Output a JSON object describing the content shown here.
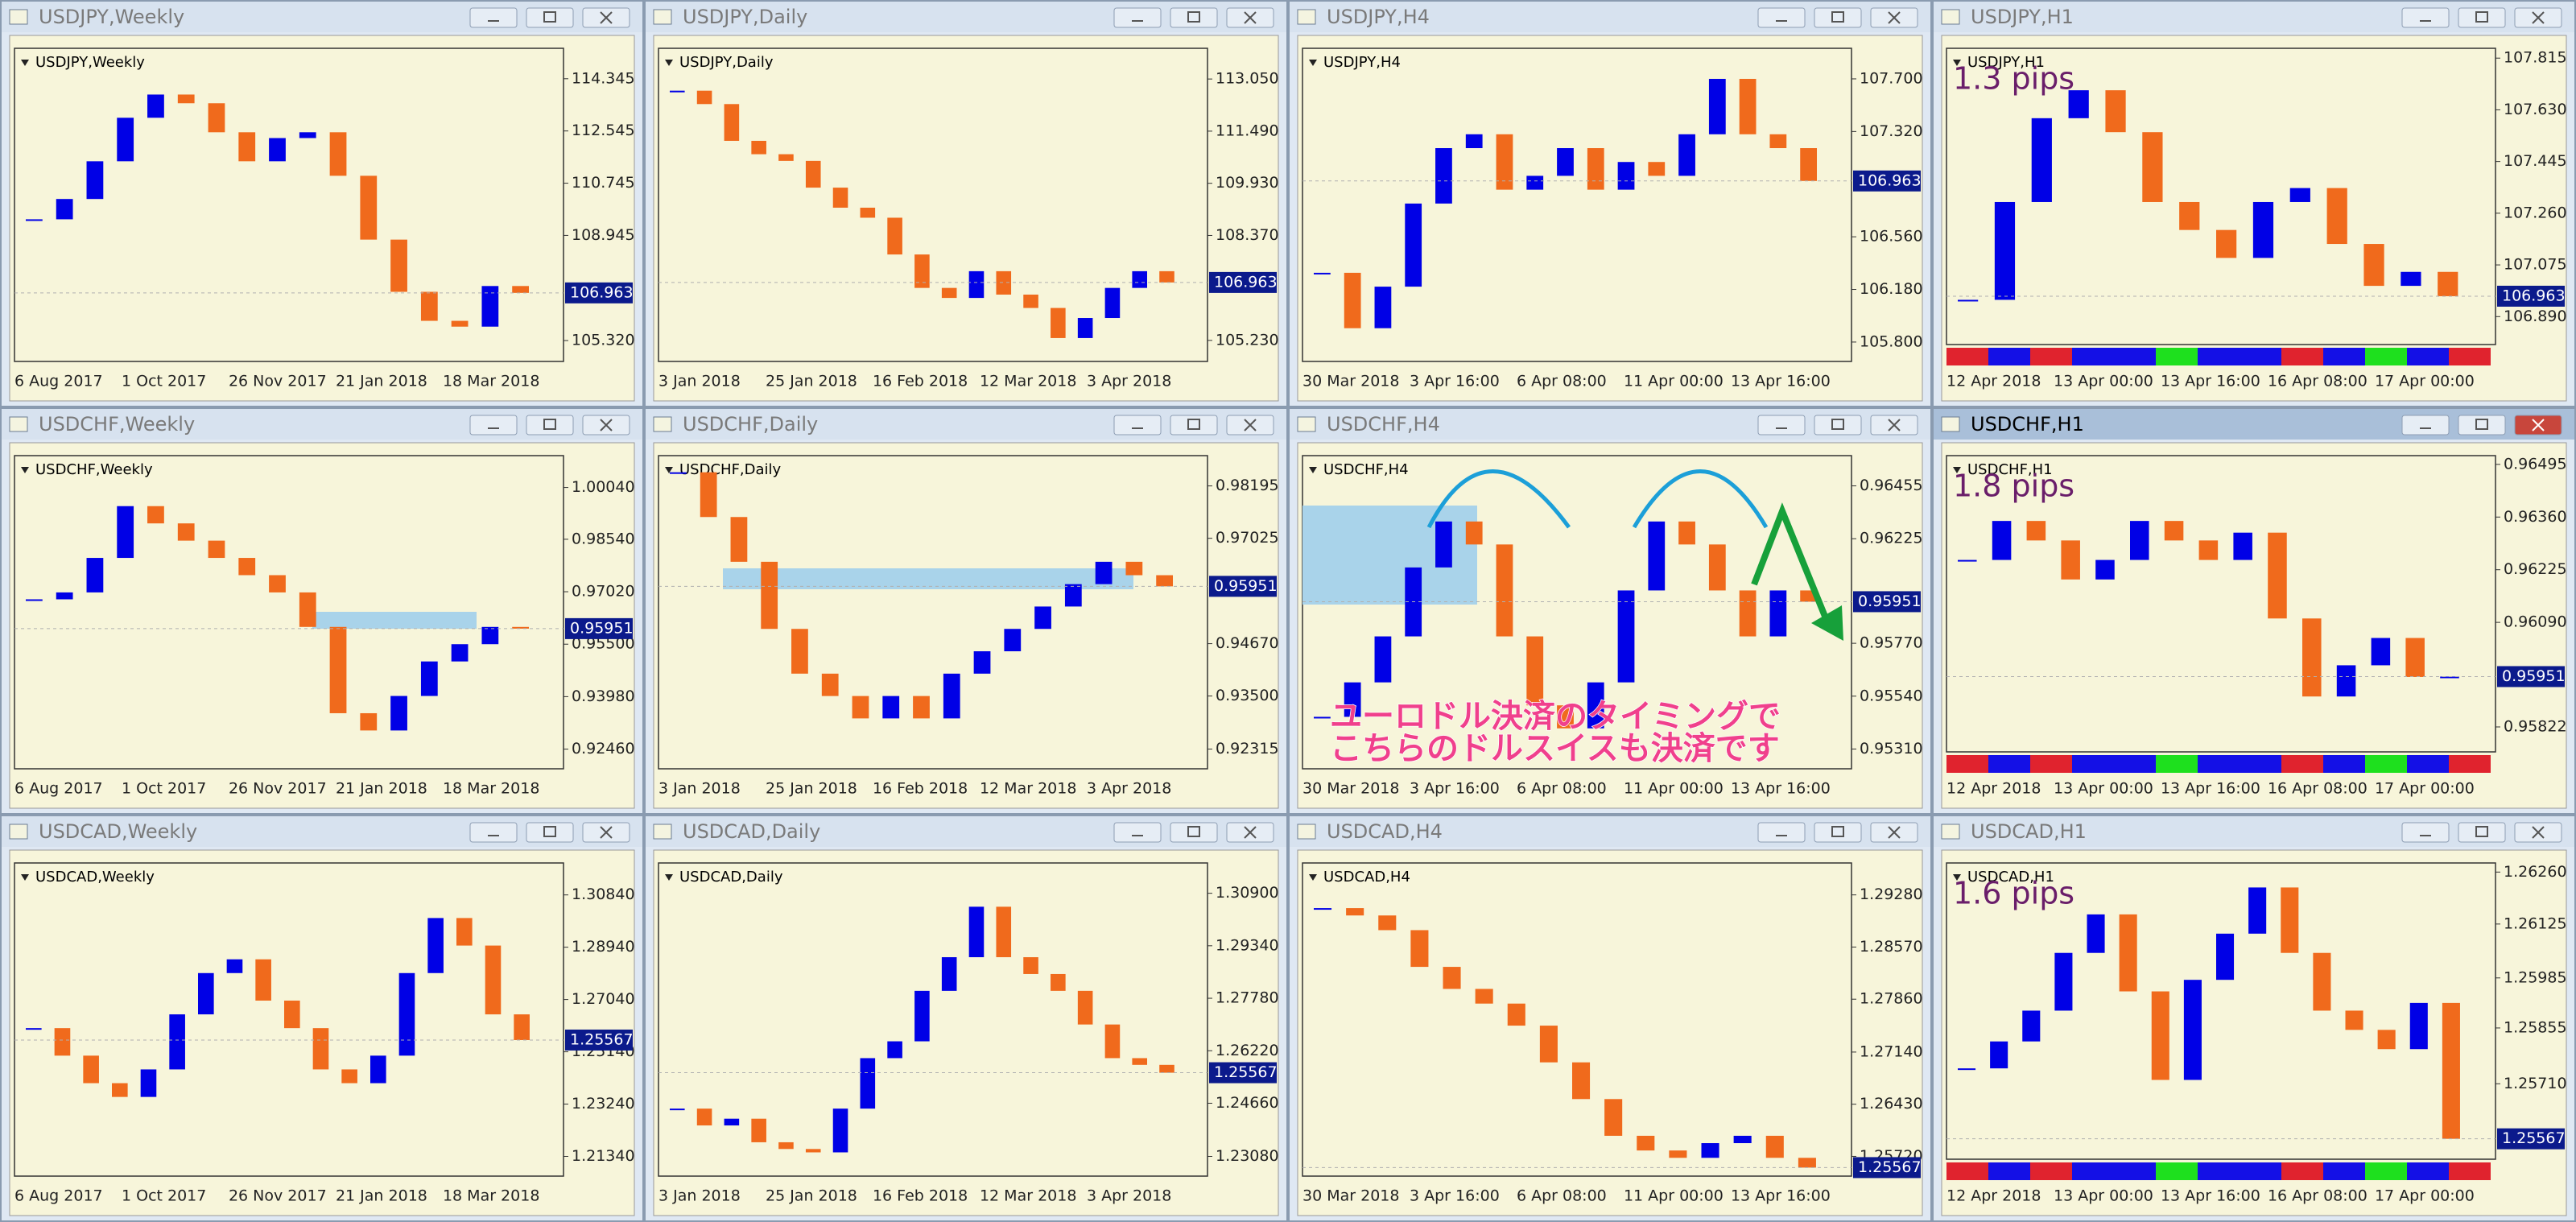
{
  "windows": [
    {
      "title": "USDJPY,Weekly",
      "ylim": [
        104.6,
        115.2
      ],
      "yticks": [
        114.345,
        112.545,
        110.745,
        108.945,
        {
          "value": 105.32,
          "label": "105.320"
        }
      ],
      "price": 106.963,
      "dates": [
        "6 Aug 2017",
        "1 Oct 2017",
        "26 Nov 2017",
        "21 Jan 2018",
        "18 Mar 2018"
      ],
      "closes": [
        109.5,
        110.2,
        111.5,
        113.0,
        113.8,
        113.5,
        112.5,
        111.5,
        112.3,
        112.5,
        111.0,
        108.8,
        107.0,
        106.0,
        105.8,
        107.2,
        106.963
      ]
    },
    {
      "title": "USDJPY,Daily",
      "ylim": [
        104.6,
        113.8
      ],
      "yticks": [
        {
          "value": 113.05,
          "label": "113.050"
        },
        {
          "value": 111.49,
          "label": "111.490"
        },
        {
          "value": 109.93,
          "label": "109.930"
        },
        {
          "value": 108.37,
          "label": "108.370"
        },
        {
          "value": 105.23,
          "label": "105.230"
        }
      ],
      "price": 106.963,
      "dates": [
        "3 Jan 2018",
        "25 Jan 2018",
        "16 Feb 2018",
        "12 Mar 2018",
        "3 Apr 2018"
      ],
      "closes": [
        112.7,
        112.3,
        111.2,
        110.8,
        110.6,
        109.8,
        109.2,
        108.9,
        107.8,
        106.8,
        106.5,
        107.3,
        106.6,
        106.2,
        105.3,
        105.9,
        106.8,
        107.3,
        106.963
      ]
    },
    {
      "title": "USDJPY,H4",
      "ylim": [
        105.66,
        107.88
      ],
      "yticks": [
        {
          "value": 107.7,
          "label": "107.700"
        },
        {
          "value": 107.32,
          "label": "107.320"
        },
        {
          "value": 106.56,
          "label": "106.560"
        },
        {
          "value": 106.18,
          "label": "106.180"
        },
        {
          "value": 105.8,
          "label": "105.800"
        }
      ],
      "price": 106.963,
      "dates": [
        "30 Mar 2018",
        "3 Apr 16:00",
        "6 Apr 08:00",
        "11 Apr 00:00",
        "13 Apr 16:00"
      ],
      "closes": [
        106.3,
        105.9,
        106.2,
        106.8,
        107.2,
        107.3,
        106.9,
        107.0,
        107.2,
        106.9,
        107.1,
        107.0,
        107.3,
        107.7,
        107.3,
        107.2,
        106.963
      ]
    },
    {
      "title": "USDJPY,H1",
      "ylim": [
        106.79,
        107.83
      ],
      "yticks": [
        107.815,
        {
          "value": 107.63,
          "label": "107.630"
        },
        107.445,
        {
          "value": 107.26,
          "label": "107.260"
        },
        107.075,
        {
          "value": 106.89,
          "label": "106.890"
        }
      ],
      "price": 106.963,
      "dates": [
        "12 Apr 2018",
        "13 Apr 00:00",
        "13 Apr 16:00",
        "16 Apr 08:00",
        "17 Apr 00:00"
      ],
      "pips": "1.3 pips",
      "closes": [
        106.95,
        107.3,
        107.6,
        107.7,
        107.55,
        107.3,
        107.2,
        107.1,
        107.3,
        107.35,
        107.15,
        107.0,
        107.05,
        106.963
      ]
    },
    {
      "title": "USDCHF,Weekly",
      "ylim": [
        0.9189,
        1.008
      ],
      "yticks": [
        {
          "value": 1.0004,
          "label": "1.00040"
        },
        {
          "value": 0.9854,
          "label": "0.98540"
        },
        {
          "value": 0.9702,
          "label": "0.97020"
        },
        {
          "value": 0.955,
          "label": "0.95500"
        },
        {
          "value": 0.9398,
          "label": "0.93980"
        },
        {
          "value": 0.9246,
          "label": "0.92460"
        }
      ],
      "price": 0.95951,
      "dates": [
        "6 Aug 2017",
        "1 Oct 2017",
        "26 Nov 2017",
        "21 Jan 2018",
        "18 Mar 2018"
      ],
      "closes": [
        0.968,
        0.97,
        0.98,
        0.995,
        0.99,
        0.985,
        0.98,
        0.975,
        0.97,
        0.96,
        0.935,
        0.93,
        0.94,
        0.95,
        0.955,
        0.96,
        0.95951
      ]
    },
    {
      "title": "USDCHF,Daily",
      "ylim": [
        0.91874,
        0.98746
      ],
      "yticks": [
        0.98195,
        0.97025,
        {
          "value": 0.9467,
          "label": "0.94670"
        },
        {
          "value": 0.935,
          "label": "0.93500"
        },
        0.92315
      ],
      "price": 0.95951,
      "dates": [
        "3 Jan 2018",
        "25 Jan 2018",
        "16 Feb 2018",
        "12 Mar 2018",
        "3 Apr 2018"
      ],
      "closes": [
        0.985,
        0.975,
        0.965,
        0.95,
        0.94,
        0.935,
        0.93,
        0.935,
        0.93,
        0.94,
        0.945,
        0.95,
        0.955,
        0.96,
        0.965,
        0.962,
        0.95951
      ]
    },
    {
      "title": "USDCHF,H4",
      "ylim": [
        0.95224,
        0.96562
      ],
      "yticks": [
        0.96455,
        0.96225,
        {
          "value": 0.9577,
          "label": "0.95770"
        },
        {
          "value": 0.9554,
          "label": "0.95540"
        },
        {
          "value": 0.9531,
          "label": "0.95310"
        }
      ],
      "price": 0.95951,
      "dates": [
        "30 Mar 2018",
        "3 Apr 16:00",
        "6 Apr 08:00",
        "11 Apr 00:00",
        "13 Apr 16:00"
      ],
      "note": [
        "ユーロドル決済のタイミングで",
        "こちらのドルスイスも決済です"
      ],
      "closes": [
        0.9545,
        0.956,
        0.958,
        0.961,
        0.963,
        0.962,
        0.958,
        0.955,
        0.954,
        0.956,
        0.96,
        0.963,
        0.962,
        0.96,
        0.958,
        0.96,
        0.95951
      ]
    },
    {
      "title": "USDCHF,H1",
      "ylim": [
        0.95758,
        0.96503
      ],
      "yticks": [
        0.96495,
        {
          "value": 0.9636,
          "label": "0.96360"
        },
        0.96225,
        {
          "value": 0.9609,
          "label": "0.96090"
        },
        0.95822
      ],
      "price": 0.95951,
      "dates": [
        "12 Apr 2018",
        "13 Apr 00:00",
        "13 Apr 16:00",
        "16 Apr 08:00",
        "17 Apr 00:00"
      ],
      "pips": "1.8 pips",
      "closes": [
        0.9625,
        0.9635,
        0.963,
        0.962,
        0.9625,
        0.9635,
        0.963,
        0.9625,
        0.9632,
        0.961,
        0.959,
        0.9598,
        0.9605,
        0.9595,
        0.95951
      ]
    },
    {
      "title": "USDCAD,Weekly",
      "ylim": [
        1.20623,
        1.31796
      ],
      "yticks": [
        {
          "value": 1.3084,
          "label": "1.30840"
        },
        {
          "value": 1.2894,
          "label": "1.28940"
        },
        {
          "value": 1.2704,
          "label": "1.27040"
        },
        {
          "value": 1.2514,
          "label": "1.25140"
        },
        {
          "value": 1.2324,
          "label": "1.23240"
        },
        {
          "value": 1.2134,
          "label": "1.21340"
        }
      ],
      "price": 1.25567,
      "dates": [
        "6 Aug 2017",
        "1 Oct 2017",
        "26 Nov 2017",
        "21 Jan 2018",
        "18 Mar 2018"
      ],
      "closes": [
        1.26,
        1.25,
        1.24,
        1.235,
        1.245,
        1.265,
        1.28,
        1.285,
        1.27,
        1.26,
        1.245,
        1.24,
        1.25,
        1.28,
        1.3,
        1.29,
        1.265,
        1.25567
      ]
    },
    {
      "title": "USDCAD,Daily",
      "ylim": [
        1.22494,
        1.31633
      ],
      "yticks": [
        {
          "value": 1.309,
          "label": "1.30900"
        },
        {
          "value": 1.2934,
          "label": "1.29340"
        },
        {
          "value": 1.2778,
          "label": "1.27780"
        },
        {
          "value": 1.2622,
          "label": "1.26220"
        },
        {
          "value": 1.2466,
          "label": "1.24660"
        },
        {
          "value": 1.2308,
          "label": "1.23080"
        }
      ],
      "price": 1.25567,
      "dates": [
        "3 Jan 2018",
        "25 Jan 2018",
        "16 Feb 2018",
        "12 Mar 2018",
        "3 Apr 2018"
      ],
      "closes": [
        1.245,
        1.24,
        1.242,
        1.235,
        1.233,
        1.232,
        1.245,
        1.26,
        1.265,
        1.28,
        1.29,
        1.305,
        1.29,
        1.285,
        1.28,
        1.27,
        1.26,
        1.258,
        1.25567
      ]
    },
    {
      "title": "USDCAD,H4",
      "ylim": [
        1.25451,
        1.29638
      ],
      "yticks": [
        {
          "value": 1.2928,
          "label": "1.29280"
        },
        {
          "value": 1.2857,
          "label": "1.28570"
        },
        {
          "value": 1.2786,
          "label": "1.27860"
        },
        {
          "value": 1.2714,
          "label": "1.27140"
        },
        {
          "value": 1.2643,
          "label": "1.26430"
        },
        {
          "value": 1.2572,
          "label": "1.25720"
        }
      ],
      "price": 1.25567,
      "dates": [
        "30 Mar 2018",
        "3 Apr 16:00",
        "6 Apr 08:00",
        "11 Apr 00:00",
        "13 Apr 16:00"
      ],
      "closes": [
        1.291,
        1.29,
        1.288,
        1.283,
        1.28,
        1.278,
        1.275,
        1.27,
        1.265,
        1.26,
        1.258,
        1.257,
        1.259,
        1.26,
        1.257,
        1.25567
      ]
    },
    {
      "title": "USDCAD,H1",
      "ylim": [
        1.25514,
        1.26269
      ],
      "yticks": [
        {
          "value": 1.2626,
          "label": "1.26260"
        },
        1.26125,
        1.25985,
        1.25855,
        {
          "value": 1.2571,
          "label": "1.25710"
        }
      ],
      "price": 1.25567,
      "dates": [
        "12 Apr 2018",
        "13 Apr 00:00",
        "13 Apr 16:00",
        "16 Apr 08:00",
        "17 Apr 00:00"
      ],
      "pips": "1.6 pips",
      "closes": [
        1.2575,
        1.2582,
        1.259,
        1.2605,
        1.2615,
        1.2595,
        1.2572,
        1.2598,
        1.261,
        1.2622,
        1.2605,
        1.259,
        1.2585,
        1.258,
        1.2592,
        1.25567
      ]
    }
  ]
}
